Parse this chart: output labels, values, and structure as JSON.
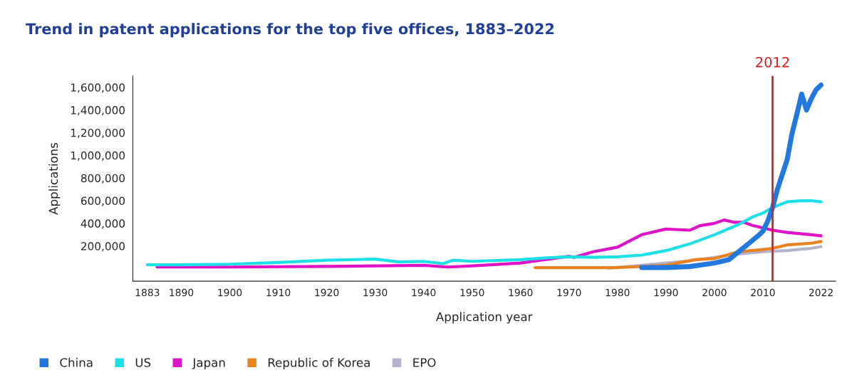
{
  "chart_data": {
    "type": "line",
    "title": "Trend in patent applications for the top five offices, 1883–2022",
    "xlabel": "Application year",
    "ylabel": "Applications",
    "xlim": [
      1880,
      2025
    ],
    "xticks": [
      1883,
      1890,
      1900,
      1910,
      1920,
      1930,
      1940,
      1950,
      1960,
      1970,
      1980,
      1990,
      2000,
      2010,
      2022
    ],
    "ylim": [
      -110000,
      1700000
    ],
    "yticks": [
      {
        "value": 200000,
        "label": "200,000"
      },
      {
        "value": 400000,
        "label": "400,000"
      },
      {
        "value": 600000,
        "label": "600,000"
      },
      {
        "value": 800000,
        "label": "800,000"
      },
      {
        "value": 1000000,
        "label": "1,000,000"
      },
      {
        "value": 1200000,
        "label": "1,200,000"
      },
      {
        "value": 1400000,
        "label": "1,400,000"
      },
      {
        "value": 1600000,
        "label": "1,600,000"
      }
    ],
    "grid": false,
    "legend": "bottom left",
    "marker": "none",
    "line_style": "solid",
    "ref_lines": [
      {
        "axis": "x",
        "value": 2012,
        "label": "2012",
        "color": "#d42020"
      }
    ],
    "series": [
      {
        "name": "China",
        "color": "#2179e0",
        "x": [
          1985,
          1990,
          1995,
          2000,
          2003,
          2005,
          2007,
          2009,
          2010,
          2011,
          2012,
          2013,
          2014,
          2015,
          2016,
          2017,
          2018,
          2019,
          2020,
          2021,
          2022
        ],
        "values": [
          10000,
          10000,
          20000,
          50000,
          80000,
          150000,
          220000,
          290000,
          330000,
          420000,
          540000,
          700000,
          830000,
          960000,
          1190000,
          1360000,
          1540000,
          1400000,
          1500000,
          1580000,
          1620000
        ]
      },
      {
        "name": "US",
        "color": "#1de0e6",
        "x": [
          1883,
          1890,
          1900,
          1910,
          1920,
          1930,
          1935,
          1940,
          1944,
          1946,
          1950,
          1960,
          1965,
          1970,
          1975,
          1980,
          1985,
          1990,
          1995,
          2000,
          2005,
          2008,
          2010,
          2012,
          2015,
          2018,
          2020,
          2022
        ],
        "values": [
          35000,
          35000,
          40000,
          55000,
          75000,
          85000,
          60000,
          65000,
          45000,
          75000,
          65000,
          80000,
          95000,
          105000,
          100000,
          105000,
          120000,
          160000,
          220000,
          300000,
          390000,
          460000,
          490000,
          540000,
          590000,
          600000,
          600000,
          590000
        ]
      },
      {
        "name": "Japan",
        "color": "#e012c8",
        "x": [
          1885,
          1900,
          1920,
          1940,
          1945,
          1950,
          1960,
          1965,
          1970,
          1971,
          1975,
          1980,
          1985,
          1990,
          1995,
          1997,
          2000,
          2002,
          2004,
          2006,
          2008,
          2012,
          2015,
          2020,
          2022
        ],
        "values": [
          15000,
          15000,
          20000,
          30000,
          15000,
          25000,
          50000,
          80000,
          110000,
          100000,
          150000,
          190000,
          300000,
          350000,
          340000,
          380000,
          400000,
          430000,
          410000,
          410000,
          380000,
          340000,
          320000,
          300000,
          290000
        ]
      },
      {
        "name": "Republic of Korea",
        "color": "#e8821e",
        "x": [
          1963,
          1980,
          1990,
          1996,
          2000,
          2005,
          2010,
          2012,
          2015,
          2020,
          2022
        ],
        "values": [
          10000,
          10000,
          30000,
          80000,
          90000,
          150000,
          170000,
          180000,
          210000,
          225000,
          240000
        ]
      },
      {
        "name": "EPO",
        "color": "#b3b3cc",
        "x": [
          1978,
          1985,
          1990,
          1995,
          2000,
          2005,
          2010,
          2015,
          2020,
          2022
        ],
        "values": [
          5000,
          30000,
          50000,
          70000,
          100000,
          130000,
          150000,
          160000,
          180000,
          195000
        ]
      }
    ]
  }
}
